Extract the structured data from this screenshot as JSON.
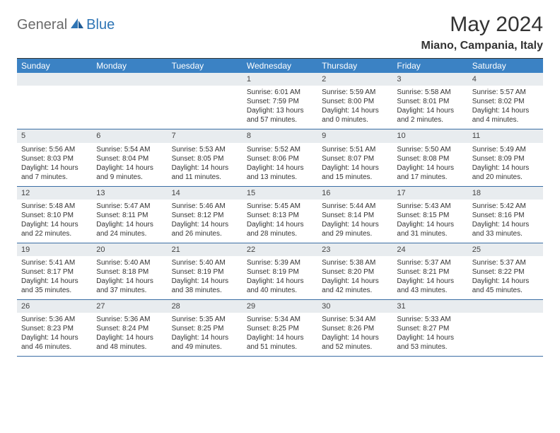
{
  "logo": {
    "part1": "General",
    "part2": "Blue"
  },
  "title": "May 2024",
  "location": "Miano, Campania, Italy",
  "colors": {
    "header_bg": "#3b82c4",
    "header_text": "#ffffff",
    "daynum_bg": "#e8ecef",
    "week_border": "#3b6ea5",
    "logo_gray": "#6a6a6a",
    "logo_blue": "#2f75b5",
    "page_bg": "#ffffff",
    "text": "#333333"
  },
  "typography": {
    "title_fontsize": 30,
    "location_fontsize": 16,
    "dayhead_fontsize": 12,
    "cell_fontsize": 10
  },
  "day_names": [
    "Sunday",
    "Monday",
    "Tuesday",
    "Wednesday",
    "Thursday",
    "Friday",
    "Saturday"
  ],
  "weeks": [
    [
      {
        "n": "",
        "sunrise": "",
        "sunset": "",
        "daylight": ""
      },
      {
        "n": "",
        "sunrise": "",
        "sunset": "",
        "daylight": ""
      },
      {
        "n": "",
        "sunrise": "",
        "sunset": "",
        "daylight": ""
      },
      {
        "n": "1",
        "sunrise": "Sunrise: 6:01 AM",
        "sunset": "Sunset: 7:59 PM",
        "daylight": "Daylight: 13 hours and 57 minutes."
      },
      {
        "n": "2",
        "sunrise": "Sunrise: 5:59 AM",
        "sunset": "Sunset: 8:00 PM",
        "daylight": "Daylight: 14 hours and 0 minutes."
      },
      {
        "n": "3",
        "sunrise": "Sunrise: 5:58 AM",
        "sunset": "Sunset: 8:01 PM",
        "daylight": "Daylight: 14 hours and 2 minutes."
      },
      {
        "n": "4",
        "sunrise": "Sunrise: 5:57 AM",
        "sunset": "Sunset: 8:02 PM",
        "daylight": "Daylight: 14 hours and 4 minutes."
      }
    ],
    [
      {
        "n": "5",
        "sunrise": "Sunrise: 5:56 AM",
        "sunset": "Sunset: 8:03 PM",
        "daylight": "Daylight: 14 hours and 7 minutes."
      },
      {
        "n": "6",
        "sunrise": "Sunrise: 5:54 AM",
        "sunset": "Sunset: 8:04 PM",
        "daylight": "Daylight: 14 hours and 9 minutes."
      },
      {
        "n": "7",
        "sunrise": "Sunrise: 5:53 AM",
        "sunset": "Sunset: 8:05 PM",
        "daylight": "Daylight: 14 hours and 11 minutes."
      },
      {
        "n": "8",
        "sunrise": "Sunrise: 5:52 AM",
        "sunset": "Sunset: 8:06 PM",
        "daylight": "Daylight: 14 hours and 13 minutes."
      },
      {
        "n": "9",
        "sunrise": "Sunrise: 5:51 AM",
        "sunset": "Sunset: 8:07 PM",
        "daylight": "Daylight: 14 hours and 15 minutes."
      },
      {
        "n": "10",
        "sunrise": "Sunrise: 5:50 AM",
        "sunset": "Sunset: 8:08 PM",
        "daylight": "Daylight: 14 hours and 17 minutes."
      },
      {
        "n": "11",
        "sunrise": "Sunrise: 5:49 AM",
        "sunset": "Sunset: 8:09 PM",
        "daylight": "Daylight: 14 hours and 20 minutes."
      }
    ],
    [
      {
        "n": "12",
        "sunrise": "Sunrise: 5:48 AM",
        "sunset": "Sunset: 8:10 PM",
        "daylight": "Daylight: 14 hours and 22 minutes."
      },
      {
        "n": "13",
        "sunrise": "Sunrise: 5:47 AM",
        "sunset": "Sunset: 8:11 PM",
        "daylight": "Daylight: 14 hours and 24 minutes."
      },
      {
        "n": "14",
        "sunrise": "Sunrise: 5:46 AM",
        "sunset": "Sunset: 8:12 PM",
        "daylight": "Daylight: 14 hours and 26 minutes."
      },
      {
        "n": "15",
        "sunrise": "Sunrise: 5:45 AM",
        "sunset": "Sunset: 8:13 PM",
        "daylight": "Daylight: 14 hours and 28 minutes."
      },
      {
        "n": "16",
        "sunrise": "Sunrise: 5:44 AM",
        "sunset": "Sunset: 8:14 PM",
        "daylight": "Daylight: 14 hours and 29 minutes."
      },
      {
        "n": "17",
        "sunrise": "Sunrise: 5:43 AM",
        "sunset": "Sunset: 8:15 PM",
        "daylight": "Daylight: 14 hours and 31 minutes."
      },
      {
        "n": "18",
        "sunrise": "Sunrise: 5:42 AM",
        "sunset": "Sunset: 8:16 PM",
        "daylight": "Daylight: 14 hours and 33 minutes."
      }
    ],
    [
      {
        "n": "19",
        "sunrise": "Sunrise: 5:41 AM",
        "sunset": "Sunset: 8:17 PM",
        "daylight": "Daylight: 14 hours and 35 minutes."
      },
      {
        "n": "20",
        "sunrise": "Sunrise: 5:40 AM",
        "sunset": "Sunset: 8:18 PM",
        "daylight": "Daylight: 14 hours and 37 minutes."
      },
      {
        "n": "21",
        "sunrise": "Sunrise: 5:40 AM",
        "sunset": "Sunset: 8:19 PM",
        "daylight": "Daylight: 14 hours and 38 minutes."
      },
      {
        "n": "22",
        "sunrise": "Sunrise: 5:39 AM",
        "sunset": "Sunset: 8:19 PM",
        "daylight": "Daylight: 14 hours and 40 minutes."
      },
      {
        "n": "23",
        "sunrise": "Sunrise: 5:38 AM",
        "sunset": "Sunset: 8:20 PM",
        "daylight": "Daylight: 14 hours and 42 minutes."
      },
      {
        "n": "24",
        "sunrise": "Sunrise: 5:37 AM",
        "sunset": "Sunset: 8:21 PM",
        "daylight": "Daylight: 14 hours and 43 minutes."
      },
      {
        "n": "25",
        "sunrise": "Sunrise: 5:37 AM",
        "sunset": "Sunset: 8:22 PM",
        "daylight": "Daylight: 14 hours and 45 minutes."
      }
    ],
    [
      {
        "n": "26",
        "sunrise": "Sunrise: 5:36 AM",
        "sunset": "Sunset: 8:23 PM",
        "daylight": "Daylight: 14 hours and 46 minutes."
      },
      {
        "n": "27",
        "sunrise": "Sunrise: 5:36 AM",
        "sunset": "Sunset: 8:24 PM",
        "daylight": "Daylight: 14 hours and 48 minutes."
      },
      {
        "n": "28",
        "sunrise": "Sunrise: 5:35 AM",
        "sunset": "Sunset: 8:25 PM",
        "daylight": "Daylight: 14 hours and 49 minutes."
      },
      {
        "n": "29",
        "sunrise": "Sunrise: 5:34 AM",
        "sunset": "Sunset: 8:25 PM",
        "daylight": "Daylight: 14 hours and 51 minutes."
      },
      {
        "n": "30",
        "sunrise": "Sunrise: 5:34 AM",
        "sunset": "Sunset: 8:26 PM",
        "daylight": "Daylight: 14 hours and 52 minutes."
      },
      {
        "n": "31",
        "sunrise": "Sunrise: 5:33 AM",
        "sunset": "Sunset: 8:27 PM",
        "daylight": "Daylight: 14 hours and 53 minutes."
      },
      {
        "n": "",
        "sunrise": "",
        "sunset": "",
        "daylight": ""
      }
    ]
  ]
}
